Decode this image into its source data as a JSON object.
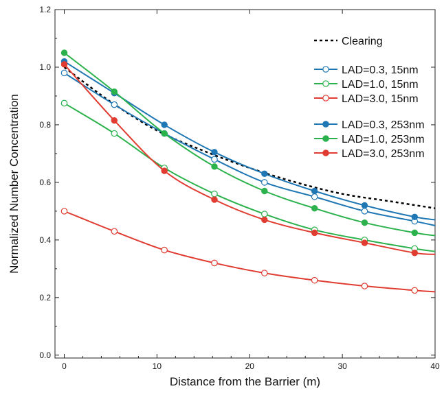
{
  "chart_data": {
    "type": "line",
    "xlabel": "Distance from the Barrier (m)",
    "ylabel": "Normalized Number Concentration",
    "xlim": [
      -1,
      40
    ],
    "ylim": [
      -0.01,
      1.2
    ],
    "xticks": [
      0,
      10,
      20,
      30,
      40
    ],
    "yticks": [
      0.0,
      0.2,
      0.4,
      0.6,
      0.8,
      1.0,
      1.2
    ],
    "xtick_labels": [
      "0",
      "10",
      "20",
      "30",
      "40"
    ],
    "ytick_labels": [
      "0.0",
      "0.2",
      "0.4",
      "0.6",
      "0.8",
      "1.0",
      "1.2"
    ],
    "grid": false,
    "legend_position": "top-right",
    "colors": {
      "clearing": "#000000",
      "lad03": "#1f77b4",
      "lad10": "#2bb24c",
      "lad30": "#e03c31"
    },
    "series": [
      {
        "name": "Clearing",
        "style": "dotted",
        "color": "#000000",
        "marker": "none",
        "x": [
          0,
          5,
          10,
          15,
          20,
          25,
          30,
          35,
          40
        ],
        "y": [
          1.0,
          0.88,
          0.78,
          0.71,
          0.65,
          0.6,
          0.56,
          0.535,
          0.51
        ]
      },
      {
        "name": "LAD=0.3, 15nm",
        "style": "solid",
        "color": "#1f77b4",
        "marker": "open",
        "x": [
          0,
          5.4,
          10.8,
          16.2,
          21.6,
          27,
          32.4,
          37.8,
          40
        ],
        "y": [
          0.98,
          0.87,
          0.77,
          0.68,
          0.6,
          0.55,
          0.5,
          0.465,
          0.45
        ]
      },
      {
        "name": "LAD=1.0, 15nm",
        "style": "solid",
        "color": "#2bb24c",
        "marker": "open",
        "x": [
          0,
          5.4,
          10.8,
          16.2,
          21.6,
          27,
          32.4,
          37.8,
          40
        ],
        "y": [
          0.875,
          0.77,
          0.65,
          0.56,
          0.49,
          0.435,
          0.4,
          0.37,
          0.36
        ]
      },
      {
        "name": "LAD=3.0, 15nm",
        "style": "solid",
        "color": "#e03c31",
        "marker": "open",
        "x": [
          0,
          5.4,
          10.8,
          16.2,
          21.6,
          27,
          32.4,
          37.8,
          40
        ],
        "y": [
          0.5,
          0.43,
          0.365,
          0.32,
          0.285,
          0.26,
          0.24,
          0.225,
          0.22
        ]
      },
      {
        "name": "LAD=0.3, 253nm",
        "style": "solid",
        "color": "#1f77b4",
        "marker": "filled",
        "x": [
          0,
          5.4,
          10.8,
          16.2,
          21.6,
          27,
          32.4,
          37.8,
          40
        ],
        "y": [
          1.02,
          0.91,
          0.8,
          0.705,
          0.63,
          0.57,
          0.52,
          0.48,
          0.47
        ]
      },
      {
        "name": "LAD=1.0, 253nm",
        "style": "solid",
        "color": "#2bb24c",
        "marker": "filled",
        "x": [
          0,
          5.4,
          10.8,
          16.2,
          21.6,
          27,
          32.4,
          37.8,
          40
        ],
        "y": [
          1.05,
          0.915,
          0.77,
          0.655,
          0.57,
          0.51,
          0.46,
          0.425,
          0.415
        ]
      },
      {
        "name": "LAD=3.0, 253nm",
        "style": "solid",
        "color": "#e03c31",
        "marker": "filled",
        "x": [
          0,
          5.4,
          10.8,
          16.2,
          21.6,
          27,
          32.4,
          37.8,
          40
        ],
        "y": [
          1.01,
          0.815,
          0.64,
          0.54,
          0.47,
          0.425,
          0.39,
          0.355,
          0.35
        ]
      }
    ]
  }
}
